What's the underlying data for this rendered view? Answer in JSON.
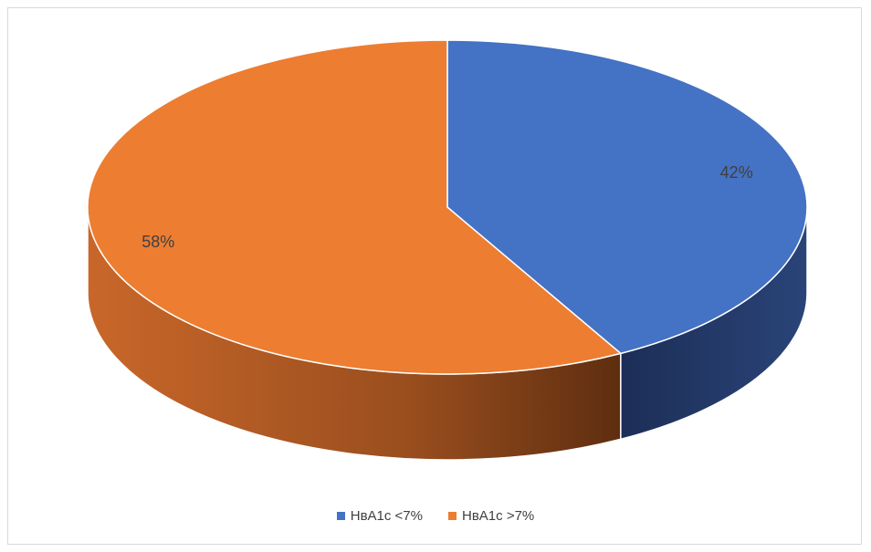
{
  "chart_data": {
    "type": "pie",
    "title": "",
    "slices": [
      {
        "name": "НвА1с <7%",
        "value": 42,
        "label": "42%",
        "color": "#4472C4",
        "side_color": "#1F3464"
      },
      {
        "name": "НвА1с >7%",
        "value": 58,
        "label": "58%",
        "color": "#ED7D31",
        "side_color": "#8A4417"
      }
    ],
    "legend_position": "bottom",
    "style": "3d"
  }
}
